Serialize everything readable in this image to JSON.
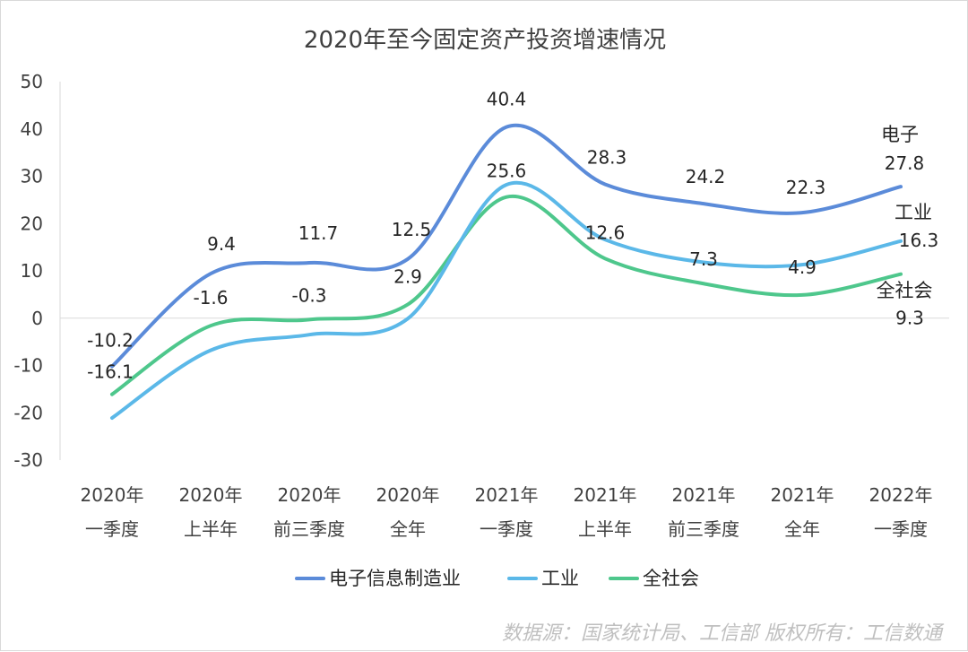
{
  "chart_data": {
    "type": "line",
    "title": "2020年至今固定资产投资增速情况",
    "categories": [
      [
        "2020年",
        "一季度"
      ],
      [
        "2020年",
        "上半年"
      ],
      [
        "2020年",
        "前三季度"
      ],
      [
        "2020年",
        "全年"
      ],
      [
        "2021年",
        "一季度"
      ],
      [
        "2021年",
        "上半年"
      ],
      [
        "2021年",
        "前三季度"
      ],
      [
        "2021年",
        "全年"
      ],
      [
        "2022年",
        "一季度"
      ]
    ],
    "ylim": [
      -30,
      50
    ],
    "yticks": [
      50,
      40,
      30,
      20,
      10,
      0,
      -10,
      -20,
      -30
    ],
    "grid": false,
    "legend_position": "bottom",
    "series": [
      {
        "name": "电子信息制造业",
        "color": "#5b8bd9",
        "values": [
          -10.2,
          9.4,
          11.7,
          12.5,
          40.4,
          28.3,
          24.2,
          22.3,
          27.8
        ],
        "labels": [
          "-10.2",
          "9.4",
          "11.7",
          "12.5",
          "40.4",
          "28.3",
          "24.2",
          "22.3",
          "27.8"
        ],
        "end_label": "电子"
      },
      {
        "name": "工业",
        "color": "#5bb8e8",
        "values": [
          -21.1,
          -6.8,
          -3.5,
          -0.1,
          28.2,
          16.6,
          11.8,
          11.3,
          16.3
        ],
        "labels": [
          "",
          "",
          "",
          "",
          "",
          "",
          "",
          "",
          "16.3"
        ],
        "end_label": "工业"
      },
      {
        "name": "全社会",
        "color": "#4ec78c",
        "values": [
          -16.1,
          -1.6,
          -0.3,
          2.9,
          25.6,
          12.6,
          7.3,
          4.9,
          9.3
        ],
        "labels": [
          "-16.1",
          "-1.6",
          "-0.3",
          "2.9",
          "25.6",
          "12.6",
          "7.3",
          "4.9",
          "9.3"
        ],
        "end_label": "全社会"
      }
    ]
  },
  "footer": {
    "source": "数据源：国家统计局、工信部 版权所有：工信数通"
  }
}
